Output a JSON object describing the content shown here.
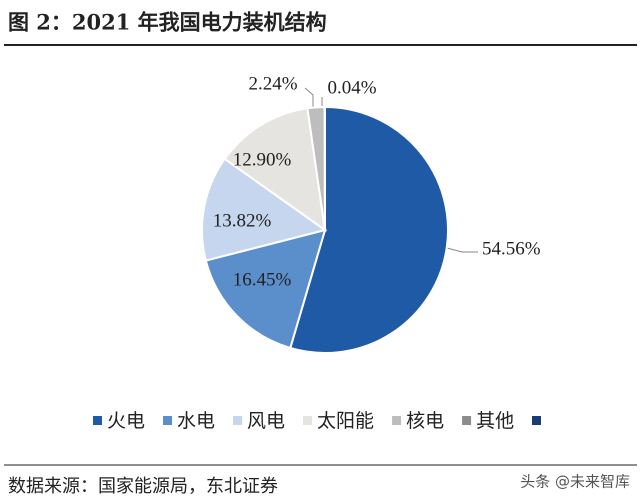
{
  "chart_data": {
    "type": "pie",
    "title": "图 2：2021 年我国电力装机结构",
    "categories": [
      "火电",
      "水电",
      "风电",
      "太阳能",
      "核电",
      "其他"
    ],
    "values": [
      54.56,
      16.45,
      13.82,
      12.9,
      2.24,
      0.04
    ],
    "value_labels": [
      "54.56%",
      "16.45%",
      "13.82%",
      "12.90%",
      "2.24%",
      "0.04%"
    ],
    "colors": [
      "#1f5aa6",
      "#5b8fcc",
      "#c5d6ee",
      "#e6e4e0",
      "#bdbdbd",
      "#8c8c8c"
    ],
    "source": "数据来源：国家能源局，东北证券",
    "watermark": "头条 @未来智库"
  }
}
